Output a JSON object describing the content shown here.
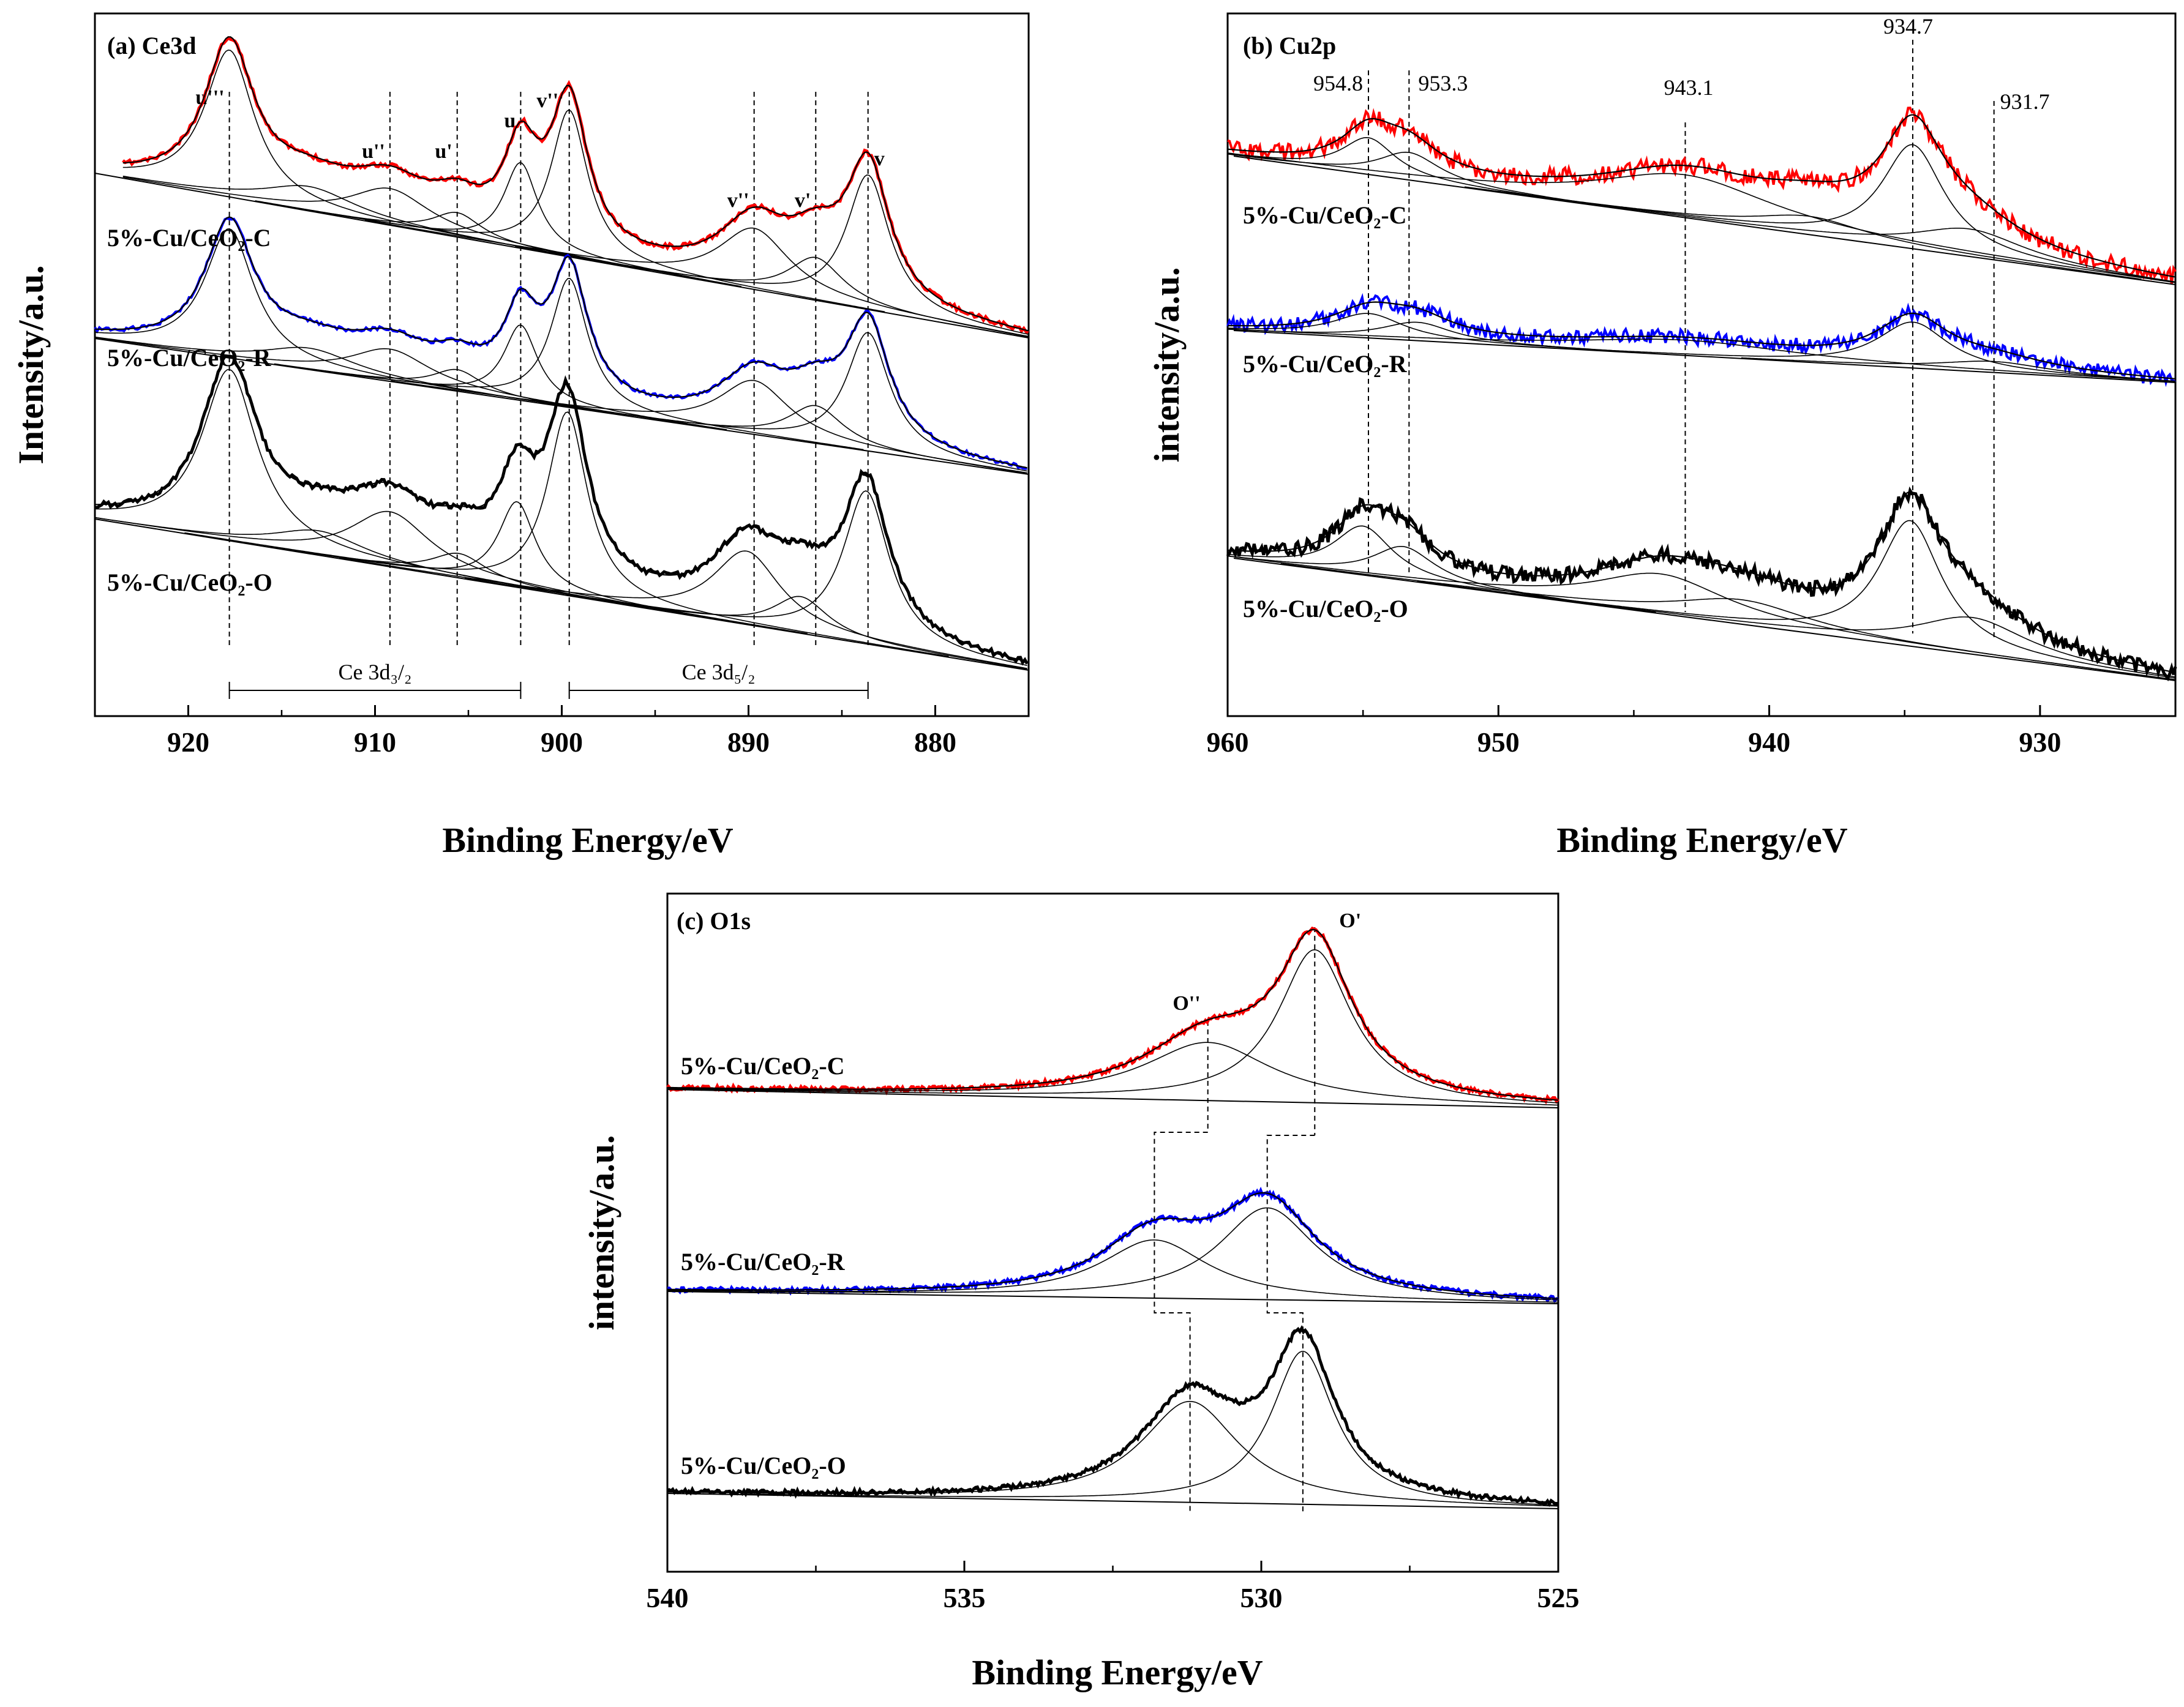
{
  "chart_data": [
    {
      "type": "line",
      "panel": "a",
      "title": "(a)  Ce3d",
      "xlabel": "Binding Energy/eV",
      "ylabel": "Intensity/a.u.",
      "xlim": [
        925,
        875
      ],
      "x_ticks": [
        920,
        910,
        900,
        890,
        880
      ],
      "tick_labels": [
        "920",
        "910",
        "900",
        "890",
        "880"
      ],
      "series": [
        {
          "name": "5%-Cu/CeO₂-C",
          "label": "5%-Cu/CeO₂-C",
          "color": "#ff0000"
        },
        {
          "name": "5%-Cu/CeO₂-R",
          "label": "5%-Cu/CeO₂-R",
          "color": "#0000ff"
        },
        {
          "name": "5%-Cu/CeO₂-O",
          "label": "5%-Cu/CeO₂-O",
          "color": "#000000"
        }
      ],
      "peak_labels": [
        {
          "text": "u'''",
          "x": 917.8
        },
        {
          "text": "u''",
          "x": 909.2
        },
        {
          "text": "u'",
          "x": 905.6
        },
        {
          "text": "u",
          "x": 902.2
        },
        {
          "text": "v'''",
          "x": 899.6
        },
        {
          "text": "v''",
          "x": 889.7
        },
        {
          "text": "v'",
          "x": 886.4
        },
        {
          "text": "v",
          "x": 883.6
        }
      ],
      "bracket_labels": [
        {
          "text": "Ce 3d₃/₂",
          "from": 917.8,
          "to": 902.2
        },
        {
          "text": "Ce 3d₅/₂",
          "from": 899.6,
          "to": 883.6
        }
      ]
    },
    {
      "type": "line",
      "panel": "b",
      "title": "(b)  Cu2p",
      "xlabel": "Binding Energy/eV",
      "ylabel": "intensity/a.u.",
      "xlim": [
        960,
        925
      ],
      "x_ticks": [
        960,
        950,
        940,
        930
      ],
      "tick_labels": [
        "960",
        "950",
        "940",
        "930"
      ],
      "series": [
        {
          "name": "5%-Cu/CeO₂-C",
          "label": "5%-Cu/CeO₂-C",
          "color": "#ff0000"
        },
        {
          "name": "5%-Cu/CeO₂-R",
          "label": "5%-Cu/CeO₂-R",
          "color": "#0000ff"
        },
        {
          "name": "5%-Cu/CeO₂-O",
          "label": "5%-Cu/CeO₂-O",
          "color": "#000000"
        }
      ],
      "peak_labels": [
        {
          "text": "954.8",
          "x": 954.8
        },
        {
          "text": "953.3",
          "x": 953.3
        },
        {
          "text": "943.1",
          "x": 943.1
        },
        {
          "text": "934.7",
          "x": 934.7
        },
        {
          "text": "931.7",
          "x": 931.7
        }
      ]
    },
    {
      "type": "line",
      "panel": "c",
      "title": "(c)  O1s",
      "xlabel": "Binding Energy/eV",
      "ylabel": "intensity/a.u.",
      "xlim": [
        540,
        525
      ],
      "x_ticks": [
        540,
        535,
        530,
        525
      ],
      "tick_labels": [
        "540",
        "535",
        "530",
        "525"
      ],
      "series": [
        {
          "name": "5%-Cu/CeO₂-C",
          "label": "5%-Cu/CeO₂-C",
          "color": "#ff0000"
        },
        {
          "name": "5%-Cu/CeO₂-R",
          "label": "5%-Cu/CeO₂-R",
          "color": "#0000ff"
        },
        {
          "name": "5%-Cu/CeO₂-O",
          "label": "5%-Cu/CeO₂-O",
          "color": "#000000"
        }
      ],
      "peak_labels": [
        {
          "text": "O''",
          "x": 530.9
        },
        {
          "text": "O'",
          "x": 529.1
        }
      ]
    }
  ]
}
